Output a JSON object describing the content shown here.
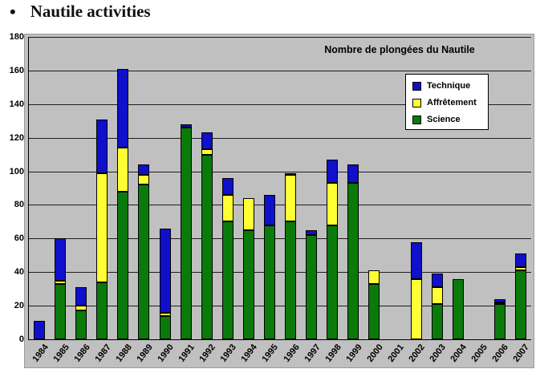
{
  "page": {
    "bullet": "•",
    "heading": "Nautile activities"
  },
  "chart_data": {
    "type": "bar",
    "stacked": true,
    "title": "Nombre de plongées du Nautile",
    "categories": [
      "1984",
      "1985",
      "1986",
      "1987",
      "1988",
      "1989",
      "1990",
      "1991",
      "1992",
      "1993",
      "1994",
      "1995",
      "1996",
      "1997",
      "1998",
      "1999",
      "2000",
      "2001",
      "2002",
      "2003",
      "2004",
      "2005",
      "2006",
      "2007"
    ],
    "series": [
      {
        "name": "Science",
        "color": "#0a7a0a",
        "values": [
          0,
          33,
          17,
          34,
          88,
          92,
          14,
          126,
          110,
          70,
          65,
          68,
          70,
          62,
          68,
          93,
          33,
          0,
          0,
          21,
          36,
          0,
          21,
          41
        ]
      },
      {
        "name": "Affrêtement",
        "color": "#ffff33",
        "values": [
          0,
          2,
          3,
          65,
          26,
          6,
          2,
          0,
          3,
          16,
          19,
          0,
          28,
          0,
          25,
          0,
          8,
          0,
          36,
          10,
          0,
          0,
          1,
          2
        ]
      },
      {
        "name": "Technique",
        "color": "#0f0fcc",
        "values": [
          11,
          25,
          11,
          32,
          47,
          6,
          50,
          2,
          10,
          10,
          0,
          18,
          1,
          3,
          14,
          11,
          0,
          0,
          22,
          8,
          0,
          0,
          2,
          8
        ]
      }
    ],
    "legend": [
      "Technique",
      "Affrêtement",
      "Science"
    ],
    "legend_position": "top-right",
    "grid": true,
    "plot_bg": "#c0c0c0",
    "ylim": [
      0,
      180
    ],
    "ytick_step": 20,
    "xlabel": "",
    "ylabel": ""
  }
}
